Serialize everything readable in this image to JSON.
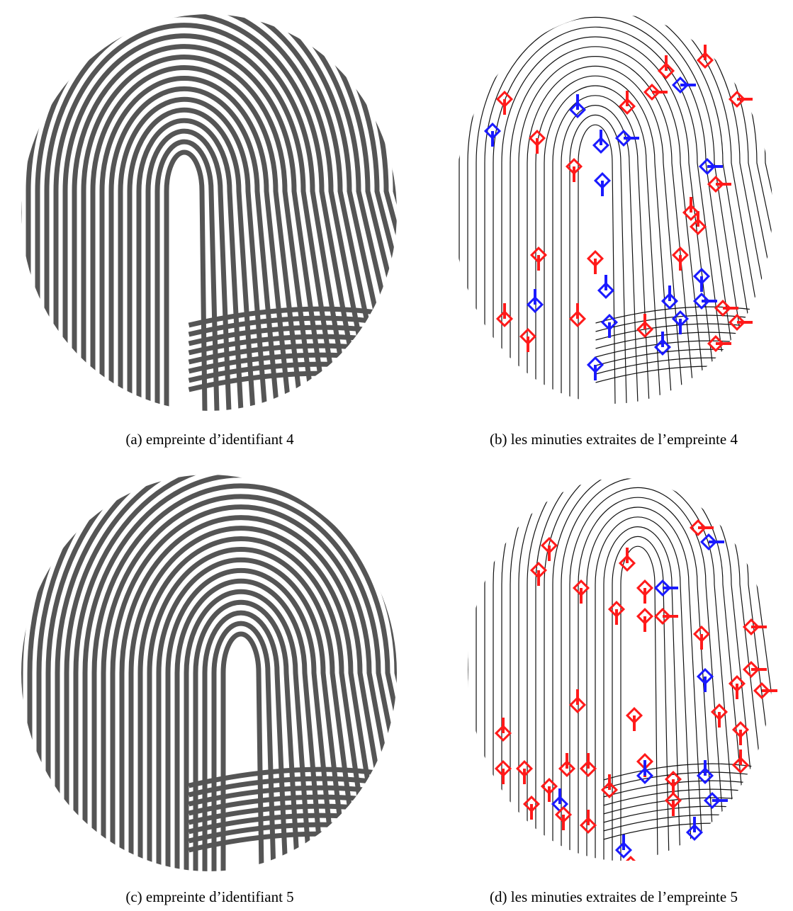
{
  "figures": [
    {
      "caption": "(a) empreinte d’identifiant 4"
    },
    {
      "caption": "(b) les minuties extraites de l’empreinte 4"
    },
    {
      "caption": "(c) empreinte d’identifiant 5"
    },
    {
      "caption": "(d) les minuties extraites de l’empreinte 5"
    }
  ]
}
